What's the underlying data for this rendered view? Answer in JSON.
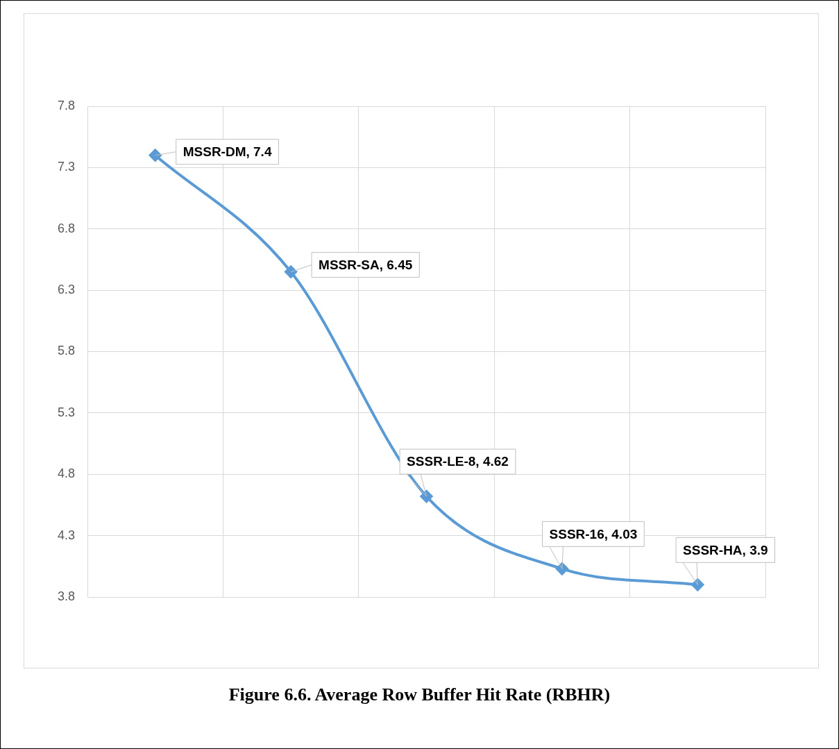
{
  "chart_data": {
    "type": "line",
    "title": "Figure 6.6. Average Row Buffer Hit Rate (RBHR)",
    "categories": [
      null,
      null,
      null,
      null,
      null
    ],
    "series": [
      {
        "color": "#5b9bd5",
        "values": [
          7.4,
          6.45,
          4.62,
          4.03,
          3.9
        ],
        "value_labels": [
          "MSSR-DM, 7.4",
          "MSSR-SA, 6.45",
          "SSSR-LE-8, 4.62",
          "SSSR-16, 4.03",
          "SSSR-HA, 3.9"
        ]
      }
    ],
    "ylim": [
      3.8,
      7.8
    ],
    "yticks": [
      3.8,
      4.3,
      4.8,
      5.3,
      5.8,
      6.3,
      6.8,
      7.3,
      7.8
    ],
    "grid": true,
    "legend": false,
    "marker": "diamond",
    "line_style": "solid",
    "tick_labels": "y"
  }
}
